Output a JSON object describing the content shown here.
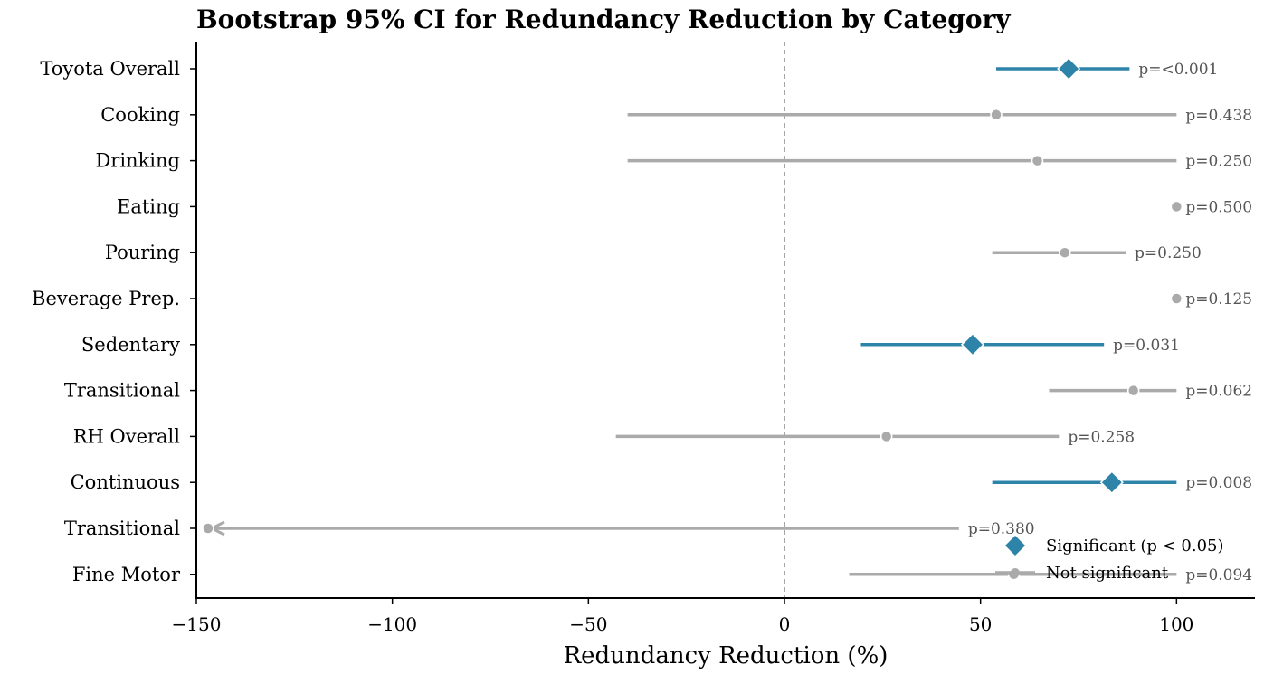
{
  "chart_data": {
    "type": "forest",
    "title": "Bootstrap 95% CI for Redundancy Reduction by Category",
    "xlabel": "Redundancy Reduction (%)",
    "ylabel": "",
    "xlim": [
      -150,
      120
    ],
    "xticks": [
      -150,
      -100,
      -50,
      0,
      50,
      100
    ],
    "xtick_labels": [
      "−150",
      "−100",
      "−50",
      "0",
      "50",
      "100"
    ],
    "reference_line": 0,
    "rows": [
      {
        "label": "Toyota Overall",
        "estimate": 72.5,
        "ci_low": 54,
        "ci_high": 88,
        "p_label": "p=<0.001",
        "significant": true
      },
      {
        "label": "Cooking",
        "estimate": 54,
        "ci_low": -40,
        "ci_high": 100,
        "p_label": "p=0.438",
        "significant": false
      },
      {
        "label": "Drinking",
        "estimate": 64.5,
        "ci_low": -40,
        "ci_high": 100,
        "p_label": "p=0.250",
        "significant": false
      },
      {
        "label": "Eating",
        "estimate": 100,
        "ci_low": 100,
        "ci_high": 100,
        "p_label": "p=0.500",
        "significant": false
      },
      {
        "label": "Pouring",
        "estimate": 71.5,
        "ci_low": 53,
        "ci_high": 87,
        "p_label": "p=0.250",
        "significant": false
      },
      {
        "label": "Beverage Prep.",
        "estimate": 100,
        "ci_low": 100,
        "ci_high": 100,
        "p_label": "p=0.125",
        "significant": false
      },
      {
        "label": "Sedentary",
        "estimate": 48,
        "ci_low": 19.5,
        "ci_high": 81.5,
        "p_label": "p=0.031",
        "significant": true
      },
      {
        "label": "Transitional",
        "estimate": 89,
        "ci_low": 67.5,
        "ci_high": 100,
        "p_label": "p=0.062",
        "significant": false
      },
      {
        "label": "RH Overall",
        "estimate": 26,
        "ci_low": -43,
        "ci_high": 70,
        "p_label": "p=0.258",
        "significant": false
      },
      {
        "label": "Continuous",
        "estimate": 83.5,
        "ci_low": 53,
        "ci_high": 100,
        "p_label": "p=0.008",
        "significant": true
      },
      {
        "label": "Transitional",
        "estimate": -147,
        "ci_low": -147,
        "ci_high": 44.5,
        "p_label": "p=0.380",
        "significant": false,
        "clipped_low": true
      },
      {
        "label": "Fine Motor",
        "estimate": 58.5,
        "ci_low": 16.5,
        "ci_high": 100,
        "p_label": "p=0.094",
        "significant": false
      }
    ],
    "legend": {
      "position": "lower-right",
      "entries": [
        {
          "label": "Significant (p < 0.05)",
          "marker": "diamond"
        },
        {
          "label": "Not significant",
          "marker": "circle"
        }
      ]
    },
    "colors": {
      "significant": "#2e84a8",
      "not_significant": "#aaaaaa",
      "reference_line": "#888888",
      "p_text": "#555555"
    },
    "grid": false
  }
}
